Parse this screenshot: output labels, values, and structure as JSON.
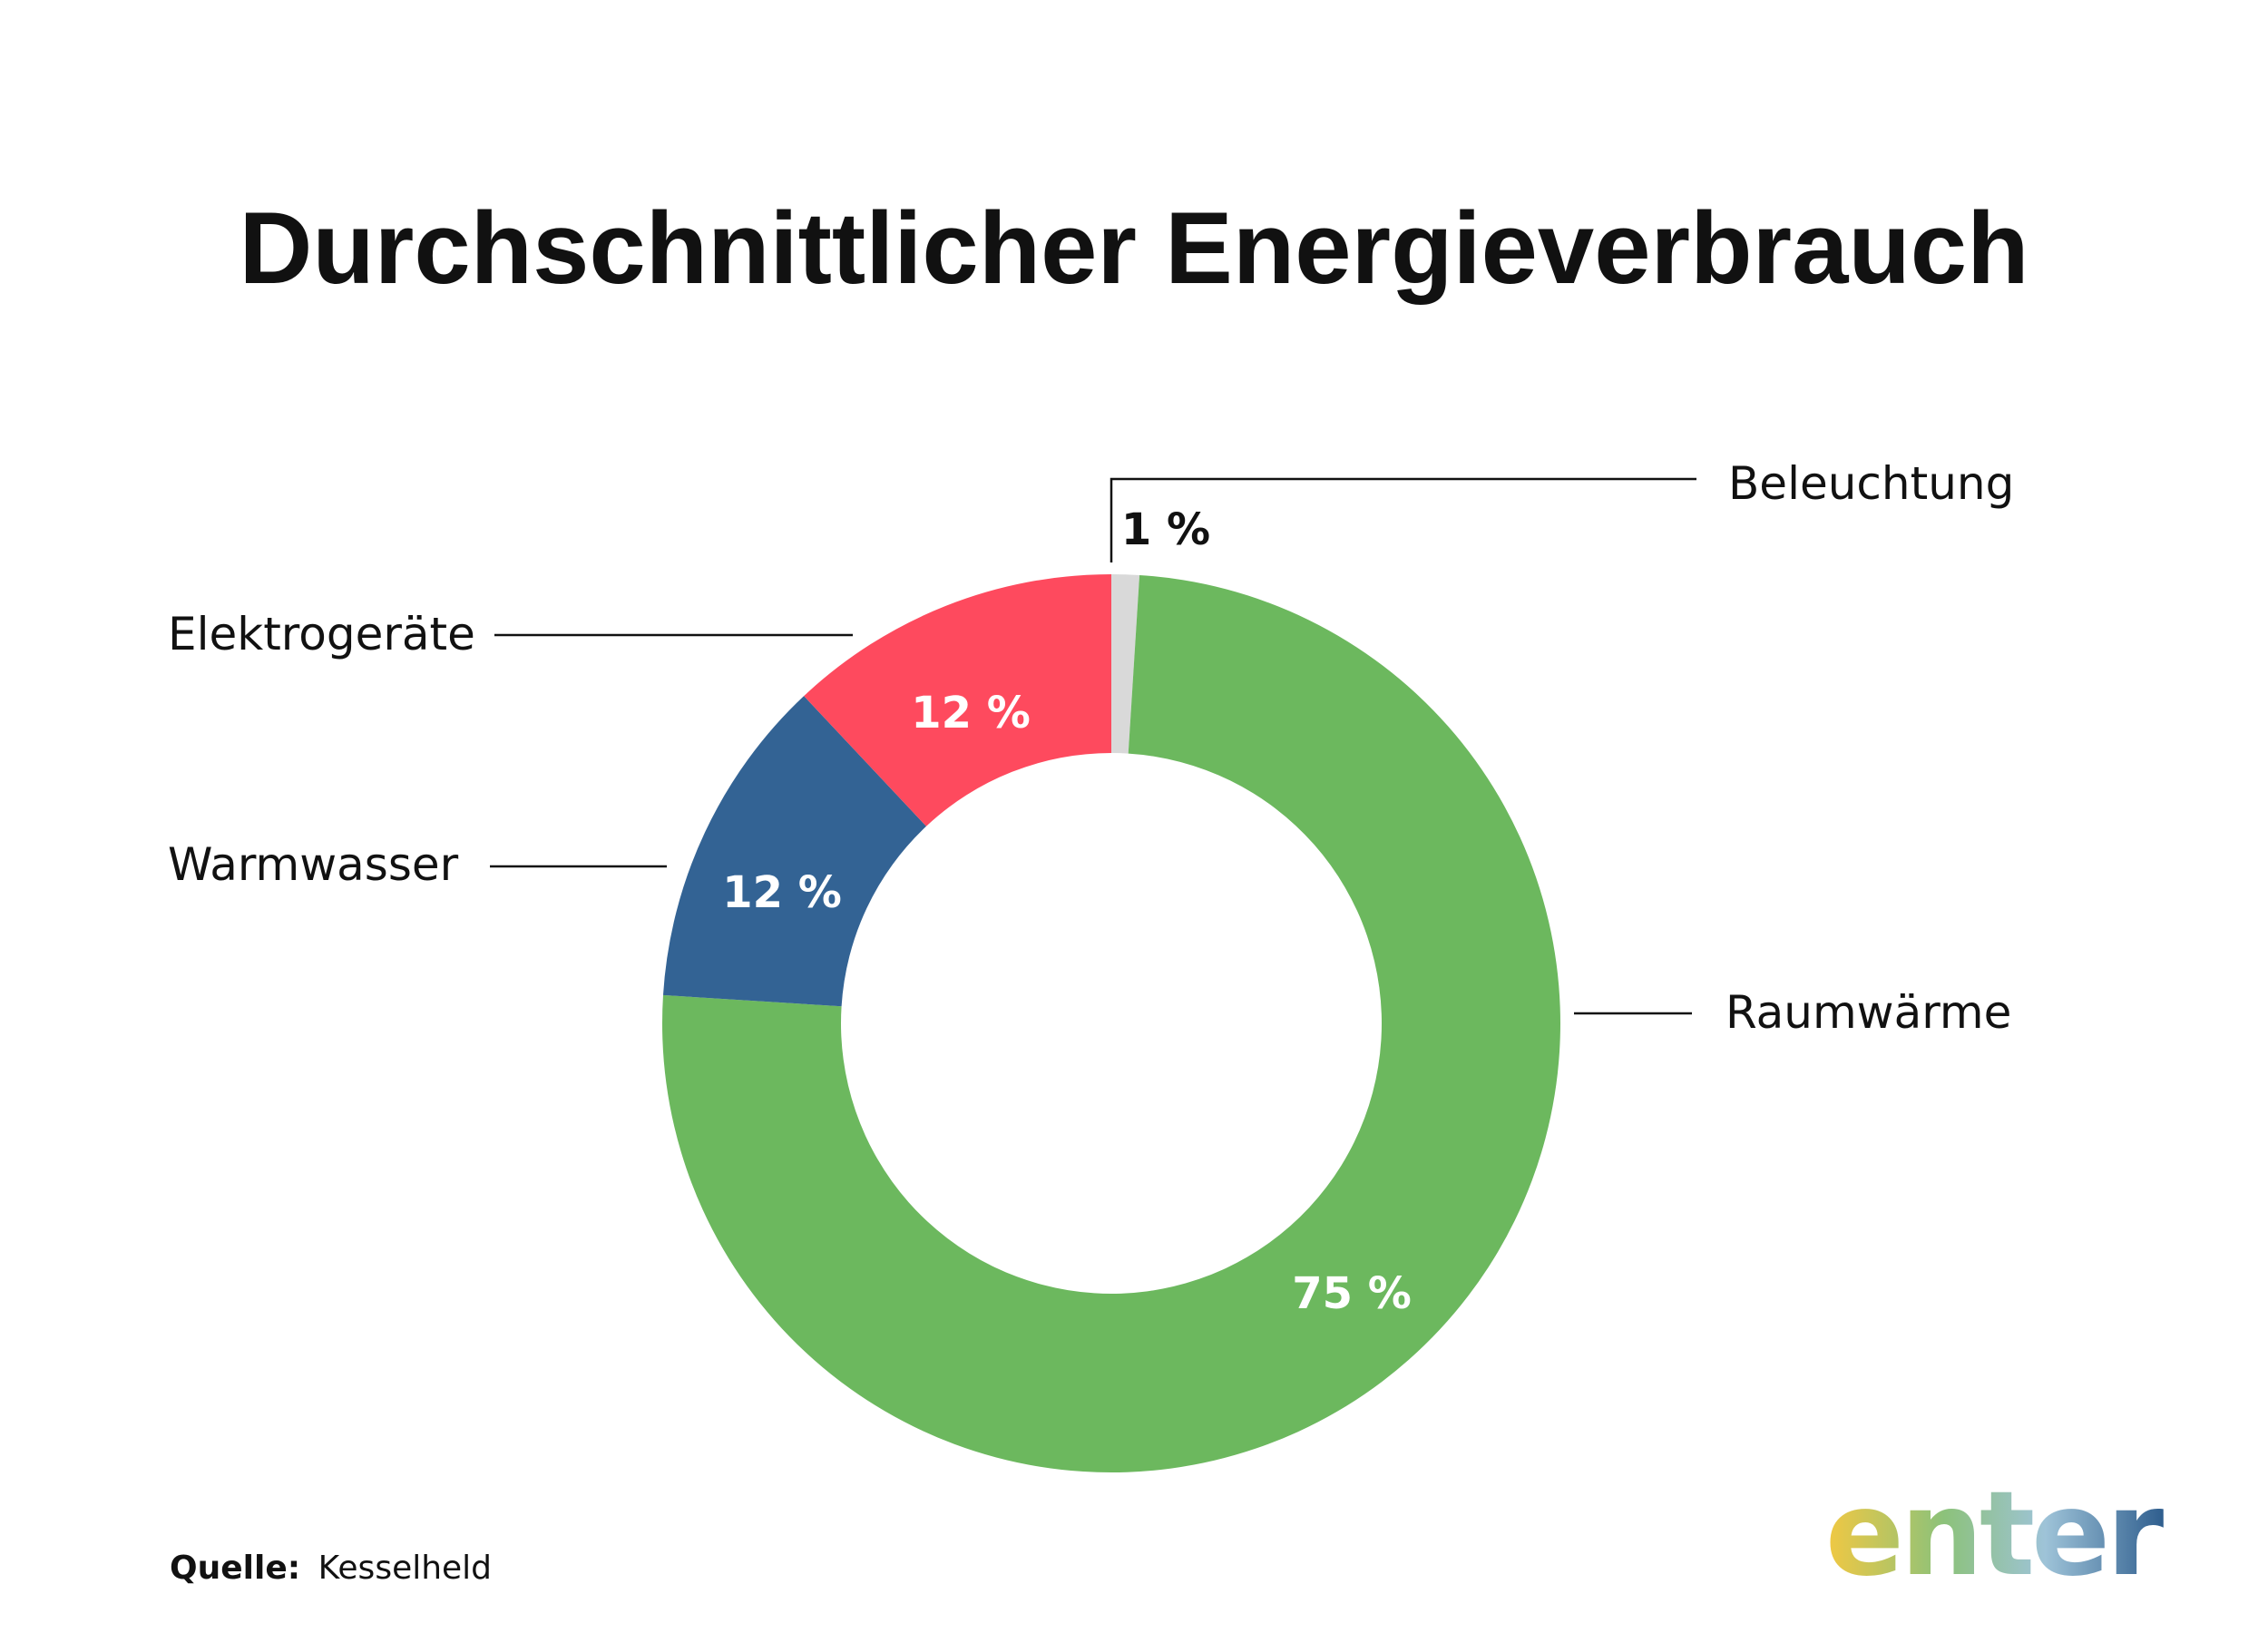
{
  "chart_data": {
    "type": "pie",
    "title": "Durchschnittlicher Energieverbrauch",
    "categories": [
      "Raumwärme",
      "Warmwasser",
      "Elektrogeräte",
      "Beleuchtung"
    ],
    "values": [
      75,
      12,
      12,
      1
    ],
    "value_labels": [
      "75 %",
      "12 %",
      "12 %",
      "1 %"
    ],
    "colors": [
      "#6cb85e",
      "#336394",
      "#fe4a5e",
      "#d9d9d9"
    ],
    "donut": true
  },
  "source": {
    "label": "Quelle:",
    "value": "Kesselheld"
  },
  "logo": {
    "text": "enter",
    "gradient": [
      "#f2c842",
      "#8cc27a",
      "#9ec3d8",
      "#2f5e8e"
    ]
  }
}
